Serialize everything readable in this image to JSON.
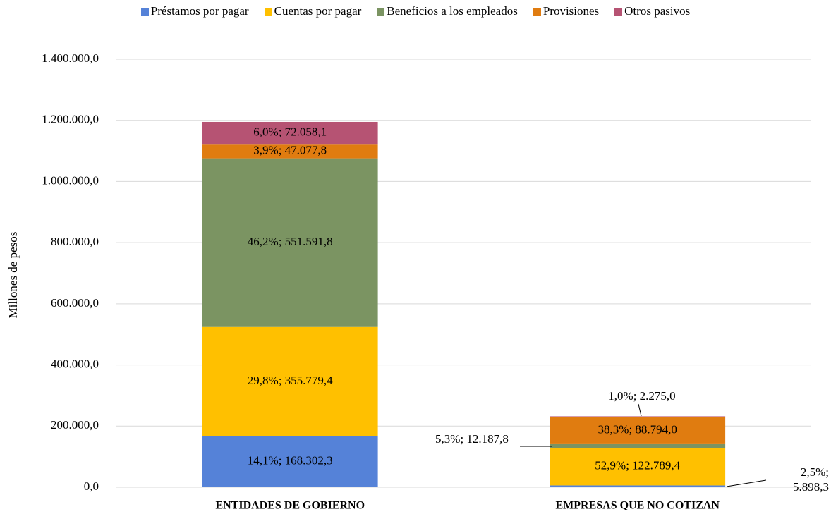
{
  "chart_data": {
    "type": "stacked_bar",
    "y_label": "Millones  de pesos",
    "categories": [
      "ENTIDADES DE GOBIERNO",
      "EMPRESAS QUE NO COTIZAN"
    ],
    "series": [
      {
        "name": "Préstamos por pagar",
        "color": "#5582d8",
        "values": [
          168302.3,
          5898.3
        ],
        "value_labels": [
          "14,1%; 168.302,3",
          "2,5%; 5.898,3"
        ]
      },
      {
        "name": "Cuentas por pagar",
        "color": "#ffc000",
        "values": [
          355779.4,
          122789.4
        ],
        "value_labels": [
          "29,8%; 355.779,4",
          "52,9%; 122.789,4"
        ]
      },
      {
        "name": "Beneficios a los empleados",
        "color": "#7b9462",
        "values": [
          551591.8,
          12187.8
        ],
        "value_labels": [
          "46,2%; 551.591,8",
          "5,3%; 12.187,8"
        ]
      },
      {
        "name": "Provisiones",
        "color": "#e07c10",
        "values": [
          47077.8,
          88794.0
        ],
        "value_labels": [
          "3,9%; 47.077,8",
          "38,3%; 88.794,0"
        ]
      },
      {
        "name": "Otros pasivos",
        "color": "#b65373",
        "values": [
          72058.1,
          2275.0
        ],
        "value_labels": [
          "6,0%; 72.058,1",
          "1,0%; 2.275,0"
        ]
      }
    ],
    "ylim": [
      0,
      1400000
    ],
    "yticks": [
      {
        "value": 0,
        "label": "0,0"
      },
      {
        "value": 200000,
        "label": "200.000,0"
      },
      {
        "value": 400000,
        "label": "400.000,0"
      },
      {
        "value": 600000,
        "label": "600.000,0"
      },
      {
        "value": 800000,
        "label": "800.000,0"
      },
      {
        "value": 1000000,
        "label": "1.000.000,0"
      },
      {
        "value": 1200000,
        "label": "1.200.000,0"
      },
      {
        "value": 1400000,
        "label": "1.400.000,0"
      }
    ],
    "grid": true,
    "legend": "top"
  }
}
